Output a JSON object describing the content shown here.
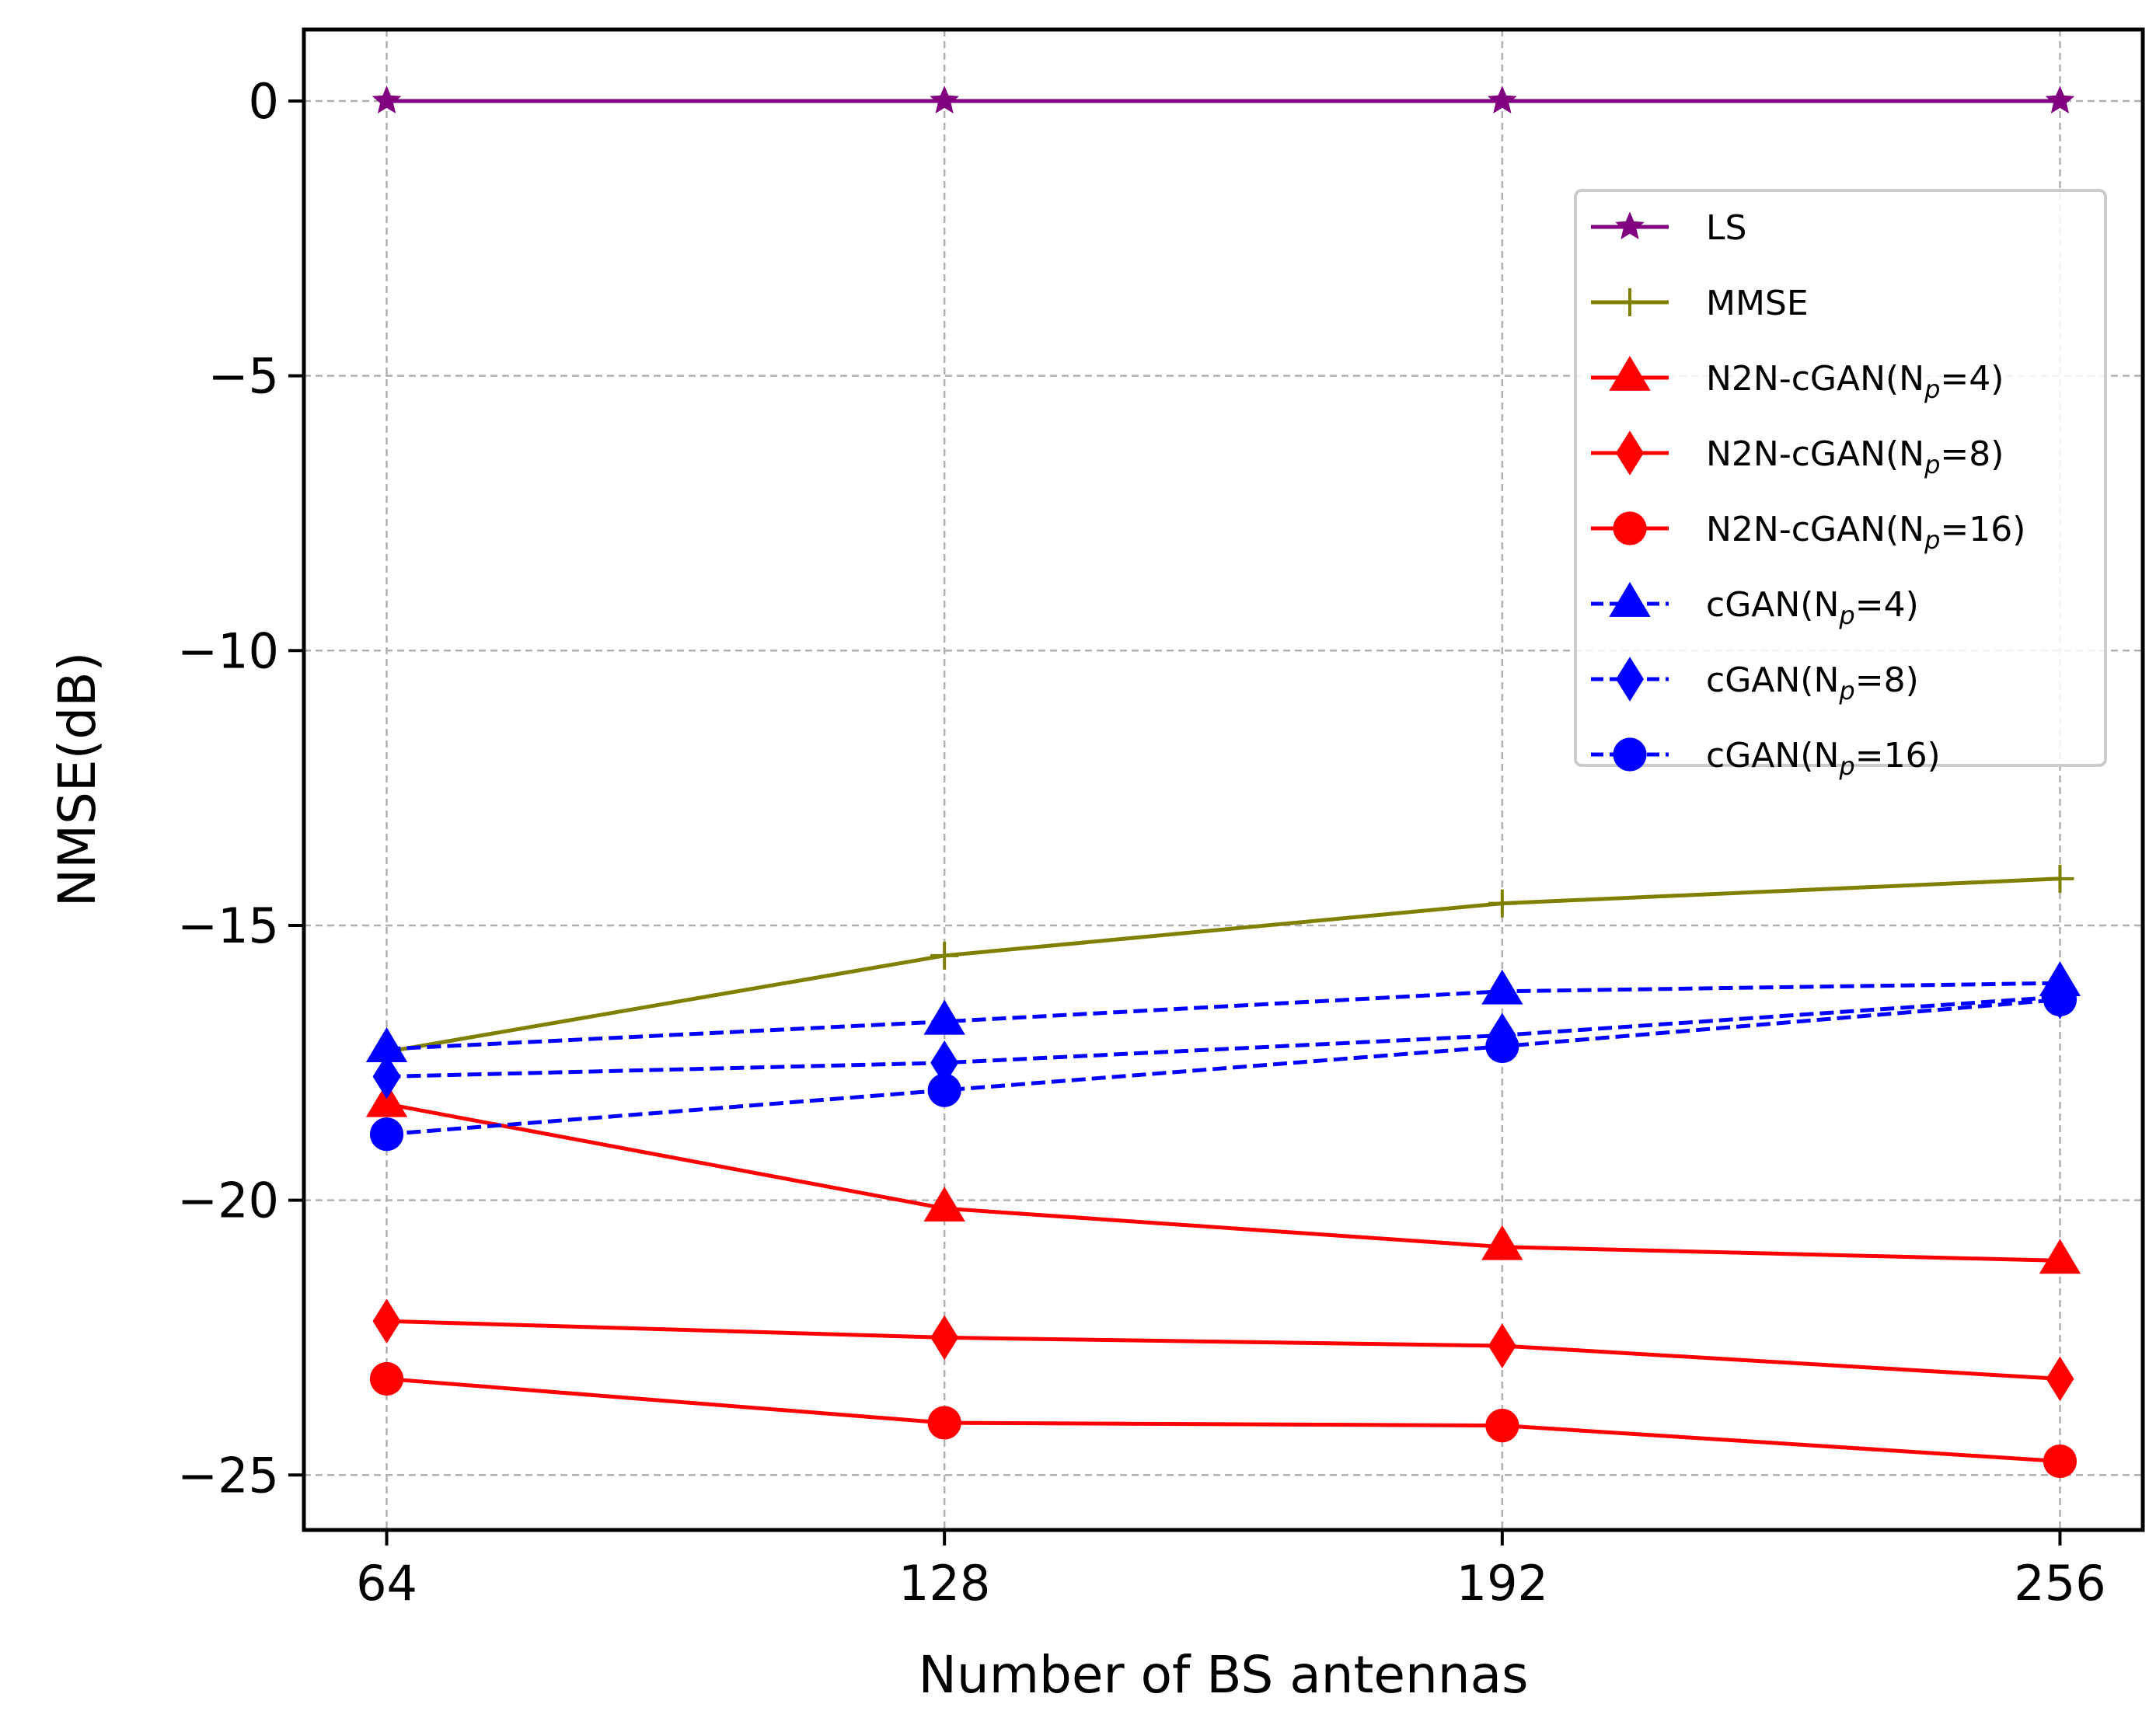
{
  "chart_data": {
    "type": "line",
    "xlabel": "Number of BS antennas",
    "ylabel": "NMSE(dB)",
    "x": [
      64,
      128,
      192,
      256
    ],
    "xticks": [
      "64",
      "128",
      "192",
      "256"
    ],
    "yticks": [
      "0",
      "−5",
      "−10",
      "−15",
      "−20",
      "−25"
    ],
    "ytick_values": [
      0,
      -5,
      -10,
      -15,
      -20,
      -25
    ],
    "xlim": [
      54.5,
      265.5
    ],
    "ylim": [
      -26,
      1.3
    ],
    "grid": true,
    "legend_position": "upper right",
    "series": [
      {
        "name": "LS",
        "color": "#800080",
        "marker": "star",
        "linestyle": "solid",
        "values": [
          0,
          0,
          0,
          0
        ]
      },
      {
        "name": "MMSE",
        "color": "#808000",
        "marker": "plus",
        "linestyle": "solid",
        "values": [
          -17.3,
          -15.55,
          -14.6,
          -14.15
        ]
      },
      {
        "name": "N2N-cGAN(N",
        "sub": "p",
        "suffix": "=4)",
        "color": "#ff0000",
        "marker": "triangle",
        "linestyle": "solid",
        "values": [
          -18.25,
          -20.15,
          -20.85,
          -21.1
        ]
      },
      {
        "name": "N2N-cGAN(N",
        "sub": "p",
        "suffix": "=8)",
        "color": "#ff0000",
        "marker": "diamond",
        "linestyle": "solid",
        "values": [
          -22.2,
          -22.5,
          -22.65,
          -23.25
        ]
      },
      {
        "name": "N2N-cGAN(N",
        "sub": "p",
        "suffix": "=16)",
        "color": "#ff0000",
        "marker": "circle",
        "linestyle": "solid",
        "values": [
          -23.25,
          -24.05,
          -24.1,
          -24.75
        ]
      },
      {
        "name": "cGAN(N",
        "sub": "p",
        "suffix": "=4)",
        "color": "#0000ff",
        "marker": "triangle",
        "linestyle": "dashed",
        "values": [
          -17.25,
          -16.75,
          -16.2,
          -16.05
        ]
      },
      {
        "name": "cGAN(N",
        "sub": "p",
        "suffix": "=8)",
        "color": "#0000ff",
        "marker": "diamond",
        "linestyle": "dashed",
        "values": [
          -17.75,
          -17.5,
          -17.0,
          -16.3
        ]
      },
      {
        "name": "cGAN(N",
        "sub": "p",
        "suffix": "=16)",
        "color": "#0000ff",
        "marker": "circle",
        "linestyle": "dashed",
        "values": [
          -18.8,
          -18.0,
          -17.2,
          -16.35
        ]
      }
    ]
  }
}
